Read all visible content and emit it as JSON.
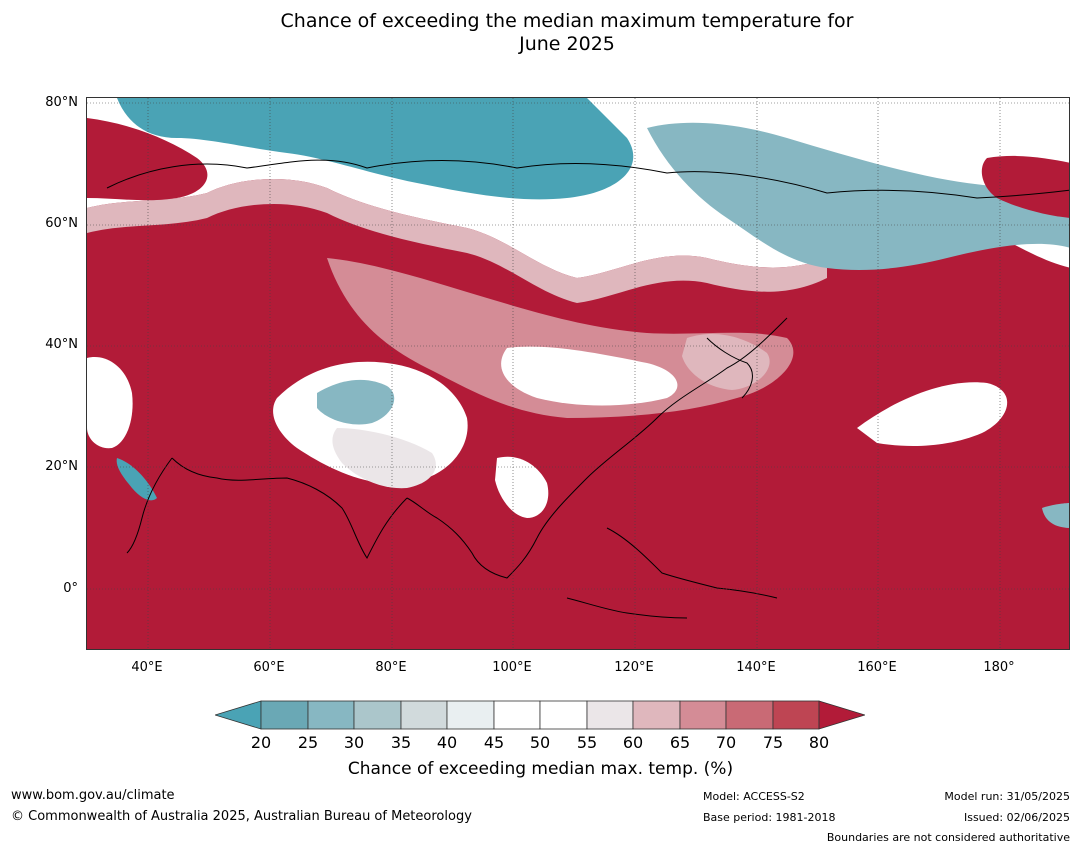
{
  "title_line1": "Chance of exceeding the median maximum temperature for",
  "title_line2": "June 2025",
  "lat_labels": [
    "80°N",
    "60°N",
    "40°N",
    "20°N",
    "0°"
  ],
  "lon_labels": [
    "40°E",
    "60°E",
    "80°E",
    "100°E",
    "120°E",
    "140°E",
    "160°E",
    "180°"
  ],
  "legend": {
    "title": "Chance of exceeding median max. temp. (%)",
    "ticks": [
      "20",
      "25",
      "30",
      "35",
      "40",
      "45",
      "50",
      "55",
      "60",
      "65",
      "70",
      "75",
      "80"
    ],
    "colors": {
      "lt20": "#4aa3b5",
      "20_25": "#6aa8b5",
      "25_30": "#87b7c2",
      "30_35": "#abc6cb",
      "35_40": "#d1dadc",
      "40_45": "#e9eff1",
      "45_50": "#ffffff",
      "50_55": "#ffffff",
      "55_60": "#ebe6e8",
      "60_65": "#dfb7bd",
      "65_70": "#d48c96",
      "70_75": "#c96a75",
      "75_80": "#be4553",
      "gt80": "#b21b38"
    }
  },
  "footer": {
    "website": "www.bom.gov.au/climate",
    "copyright": "© Commonwealth of Australia 2025, Australian Bureau of Meteorology",
    "model": "Model: ACCESS-S2",
    "base_period": "Base period: 1981-2018",
    "model_run": "Model run: 31/05/2025",
    "issued": "Issued: 02/06/2025",
    "disclaimer": "Boundaries are not considered authoritative"
  }
}
